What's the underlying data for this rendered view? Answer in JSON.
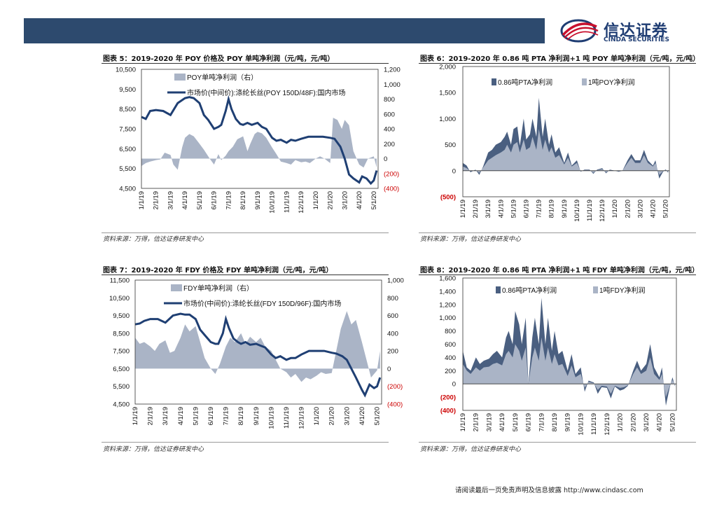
{
  "header": {
    "logo_cn": "信达证券",
    "logo_en": "CINDA SECURITIES"
  },
  "figures": [
    {
      "title": "图表 5：2019-2020 年 POY 价格及 POY 单吨净利润（元/吨，元/吨）",
      "source": "资料来源：万得，信达证券研发中心"
    },
    {
      "title": "图表 6：2019-2020 年 0.86 吨 PTA 净利润+1 吨 POY 单吨净利润（元/吨，元/吨）",
      "source": "资料来源：万得，信达证券研发中心"
    },
    {
      "title": "图表 7：2019-2020 年 FDY 价格及 FDY 单吨净利润（元/吨，元/吨）",
      "source": "资料来源：万得，信达证券研发中心"
    },
    {
      "title": "图表 8：2019-2020 年 0.86 吨 PTA 净利润+1 吨 FDY 单吨净利润（元/吨，元/吨）",
      "source": "资料来源：万得，信达证券研发中心"
    }
  ],
  "footer": {
    "text": "请阅读最后一页免责声明及信息披露 http://www.cindasc.com"
  },
  "colors": {
    "dark": "#1f3f73",
    "light": "#aab4c6",
    "band": "#2d4a6e",
    "red": "#cc0000"
  },
  "chart_data": [
    {
      "type": "area+line",
      "xticks": [
        "1/1/19",
        "2/1/19",
        "3/1/19",
        "4/1/19",
        "5/1/19",
        "6/1/19",
        "7/1/19",
        "8/1/19",
        "9/1/19",
        "10/1/19",
        "11/1/19",
        "12/1/19",
        "1/1/20",
        "2/1/20",
        "3/1/20",
        "4/1/20",
        "5/1/20"
      ],
      "ylim_left": [
        4500,
        10500
      ],
      "yticks_left": [
        "10,500",
        "9,500",
        "8,500",
        "7,500",
        "6,500",
        "5,500",
        "4,500"
      ],
      "ylim_right": [
        -400,
        1200
      ],
      "yticks_right": [
        "1,200",
        "1,000",
        "800",
        "600",
        "400",
        "200",
        "0",
        "(200)",
        "(400)"
      ],
      "series": [
        {
          "name": "POY单吨净利润（右）",
          "kind": "area",
          "axis": "right",
          "color": "#aab4c6",
          "x": [
            0,
            0.3,
            0.6,
            1,
            1.3,
            1.6,
            2,
            2.2,
            2.5,
            2.8,
            3,
            3.3,
            3.6,
            4,
            4.3,
            4.7,
            5,
            5.3,
            5.5,
            5.8,
            6,
            6.3,
            6.6,
            7,
            7.3,
            7.5,
            7.8,
            8,
            8.3,
            8.6,
            9,
            9.3,
            9.6,
            10,
            10.3,
            10.6,
            11,
            11.3,
            11.6,
            12,
            12.3,
            12.6,
            13,
            13.2,
            13.5,
            13.8,
            14,
            14.3,
            14.6,
            15,
            15.3,
            15.6,
            16,
            16.2
          ],
          "values": [
            -100,
            -60,
            -40,
            -20,
            -10,
            80,
            50,
            -80,
            -150,
            150,
            280,
            330,
            300,
            200,
            120,
            0,
            -80,
            60,
            -20,
            40,
            100,
            160,
            260,
            300,
            100,
            200,
            330,
            360,
            340,
            280,
            150,
            60,
            -40,
            -60,
            -80,
            -20,
            -50,
            -40,
            -60,
            0,
            30,
            0,
            -60,
            550,
            520,
            400,
            520,
            450,
            100,
            -80,
            -120,
            0,
            30,
            -120
          ]
        },
        {
          "name": "市场价(中间价):涤纶长丝(POY 150D/48F):国内市场",
          "kind": "line",
          "axis": "left",
          "color": "#1f3f73",
          "x": [
            0,
            0.3,
            0.6,
            1,
            1.5,
            2,
            2.5,
            3,
            3.3,
            3.6,
            4,
            4.3,
            4.6,
            5,
            5.3,
            5.5,
            5.8,
            6,
            6.2,
            6.5,
            6.8,
            7,
            7.3,
            7.6,
            8,
            8.3,
            8.6,
            9,
            9.3,
            9.6,
            10,
            10.3,
            10.6,
            11,
            11.5,
            12,
            12.5,
            13,
            13.3,
            13.7,
            14,
            14.3,
            14.6,
            15,
            15.2,
            15.5,
            15.8,
            16,
            16.2
          ],
          "values": [
            8100,
            8000,
            8400,
            8450,
            8400,
            8200,
            8800,
            9050,
            9100,
            9050,
            8800,
            8200,
            7950,
            7500,
            7600,
            7700,
            8400,
            9000,
            8500,
            8000,
            7750,
            7700,
            7800,
            7700,
            7800,
            7600,
            7500,
            7050,
            6900,
            6950,
            6800,
            6950,
            6900,
            7000,
            7100,
            7100,
            7100,
            7050,
            7000,
            6600,
            6000,
            5200,
            5000,
            4800,
            5100,
            5000,
            4750,
            4900,
            5400
          ]
        }
      ],
      "legend": [
        "POY单吨净利润（右）",
        "市场价(中间价):涤纶长丝(POY 150D/48F):国内市场"
      ]
    },
    {
      "type": "area",
      "xticks": [
        "1/1/19",
        "2/1/19",
        "3/1/19",
        "4/1/19",
        "5/1/19",
        "6/1/19",
        "7/1/19",
        "8/1/19",
        "9/1/19",
        "10/1/19",
        "11/1/19",
        "12/1/19",
        "1/1/20",
        "2/1/20",
        "3/1/20",
        "4/1/20",
        "5/1/20"
      ],
      "ylim": [
        -500,
        2000
      ],
      "yticks": [
        "2,000",
        "1,500",
        "1,000",
        "500",
        "0",
        "(500)"
      ],
      "series": [
        {
          "name": "0.86吨PTA净利润",
          "kind": "area",
          "color": "#4a5f80",
          "x": [
            0,
            0.3,
            0.6,
            1,
            1.3,
            1.6,
            2,
            2.3,
            2.6,
            3,
            3.3,
            3.5,
            3.8,
            4,
            4.3,
            4.5,
            4.8,
            5,
            5.3,
            5.5,
            5.8,
            6,
            6.3,
            6.5,
            6.8,
            7,
            7.3,
            7.6,
            8,
            8.3,
            8.6,
            9,
            9.3,
            9.6,
            10,
            10.3,
            10.6,
            11,
            11.3,
            11.6,
            12,
            12.3,
            12.6,
            13,
            13.3,
            13.6,
            14,
            14.3,
            14.6,
            15,
            15.2,
            15.5,
            15.8,
            16,
            16.2
          ],
          "values": [
            150,
            100,
            -30,
            20,
            -80,
            80,
            350,
            400,
            500,
            550,
            650,
            750,
            500,
            800,
            850,
            480,
            1000,
            600,
            700,
            1000,
            650,
            1400,
            650,
            1000,
            500,
            700,
            350,
            450,
            150,
            350,
            100,
            200,
            -20,
            20,
            20,
            -60,
            20,
            50,
            -50,
            20,
            0,
            -20,
            0,
            200,
            320,
            200,
            200,
            400,
            200,
            100,
            200,
            -150,
            -20,
            30,
            -40
          ]
        },
        {
          "name": "1吨POY净利润",
          "kind": "area",
          "color": "#aab4c6",
          "x": [
            0,
            0.3,
            0.6,
            1,
            1.3,
            1.6,
            2,
            2.3,
            2.6,
            3,
            3.3,
            3.5,
            3.8,
            4,
            4.3,
            4.5,
            4.8,
            5,
            5.3,
            5.5,
            5.8,
            6,
            6.3,
            6.5,
            6.8,
            7,
            7.3,
            7.6,
            8,
            8.3,
            8.6,
            9,
            9.3,
            9.6,
            10,
            10.3,
            10.6,
            11,
            11.3,
            11.6,
            12,
            12.3,
            12.6,
            13,
            13.3,
            13.6,
            14,
            14.3,
            14.6,
            15,
            15.2,
            15.5,
            15.8,
            16,
            16.2
          ],
          "values": [
            80,
            50,
            -10,
            10,
            -40,
            60,
            200,
            250,
            300,
            350,
            400,
            500,
            350,
            500,
            550,
            350,
            600,
            400,
            450,
            650,
            400,
            800,
            400,
            600,
            350,
            450,
            250,
            300,
            120,
            250,
            80,
            150,
            -10,
            10,
            10,
            -40,
            10,
            30,
            -30,
            10,
            0,
            -10,
            0,
            150,
            250,
            150,
            150,
            300,
            150,
            80,
            150,
            -80,
            -10,
            20,
            -20
          ]
        }
      ],
      "legend": [
        "0.86吨PTA净利润",
        "1吨POY净利润"
      ]
    },
    {
      "type": "area+line",
      "xticks": [
        "1/1/19",
        "2/1/19",
        "3/1/19",
        "4/1/19",
        "5/1/19",
        "6/1/19",
        "7/1/19",
        "8/1/19",
        "9/1/19",
        "10/1/19",
        "11/1/19",
        "12/1/19",
        "1/1/20",
        "2/1/20",
        "3/1/20",
        "4/1/20",
        "5/1/20"
      ],
      "ylim_left": [
        4500,
        11500
      ],
      "yticks_left": [
        "11,500",
        "10,500",
        "9,500",
        "8,500",
        "7,500",
        "6,500",
        "5,500",
        "4,500"
      ],
      "ylim_right": [
        -400,
        1000
      ],
      "yticks_right": [
        "1,000",
        "800",
        "600",
        "400",
        "200",
        "0",
        "(200)",
        "(400)"
      ],
      "series": [
        {
          "name": "FDY单吨净利润（右）",
          "kind": "area",
          "axis": "right",
          "color": "#aab4c6",
          "x": [
            0,
            0.3,
            0.6,
            1,
            1.3,
            1.6,
            2,
            2.3,
            2.6,
            3,
            3.3,
            3.6,
            4,
            4.3,
            4.6,
            5,
            5.3,
            5.6,
            6,
            6.3,
            6.6,
            7,
            7.3,
            7.6,
            8,
            8.3,
            8.6,
            9,
            9.3,
            9.6,
            10,
            10.3,
            10.6,
            11,
            11.3,
            11.6,
            12,
            12.3,
            12.6,
            13,
            13.3,
            13.6,
            14,
            14.3,
            14.6,
            15,
            15.3,
            15.6,
            16,
            16.2
          ],
          "values": [
            350,
            280,
            300,
            250,
            200,
            280,
            320,
            180,
            200,
            350,
            500,
            420,
            480,
            300,
            120,
            0,
            -60,
            50,
            250,
            350,
            300,
            400,
            280,
            360,
            300,
            350,
            250,
            200,
            100,
            0,
            -40,
            -100,
            -60,
            -150,
            -100,
            -120,
            -80,
            -40,
            -60,
            -50,
            200,
            450,
            650,
            500,
            550,
            300,
            100,
            -100,
            -20,
            200
          ]
        },
        {
          "name": "市场价(中间价):涤纶长丝(FDY 150D/96F):国内市场",
          "kind": "line",
          "axis": "left",
          "color": "#1f3f73",
          "x": [
            0,
            0.3,
            0.6,
            1,
            1.5,
            2,
            2.5,
            3,
            3.3,
            3.6,
            4,
            4.3,
            4.6,
            5,
            5.3,
            5.5,
            5.8,
            6,
            6.2,
            6.5,
            6.8,
            7,
            7.3,
            7.6,
            8,
            8.3,
            8.6,
            9,
            9.3,
            9.6,
            10,
            10.3,
            10.6,
            11,
            11.5,
            12,
            12.5,
            13,
            13.3,
            13.7,
            14,
            14.3,
            14.6,
            15,
            15.2,
            15.5,
            15.8,
            16,
            16.2
          ],
          "values": [
            9000,
            9050,
            9200,
            9300,
            9300,
            9100,
            9500,
            9600,
            9550,
            9550,
            9300,
            8700,
            8400,
            8000,
            7900,
            7900,
            8500,
            9300,
            8800,
            8200,
            8000,
            7900,
            8000,
            7850,
            7900,
            7800,
            7700,
            7300,
            7100,
            7200,
            7000,
            7100,
            7100,
            7300,
            7500,
            7500,
            7500,
            7400,
            7350,
            7200,
            7000,
            6500,
            6000,
            5300,
            5000,
            5600,
            5400,
            5500,
            6000
          ]
        }
      ],
      "legend": [
        "FDY单吨净利润（右）",
        "市场价(中间价):涤纶长丝(FDY 150D/96F):国内市场"
      ]
    },
    {
      "type": "area",
      "xticks": [
        "1/1/19",
        "2/1/19",
        "3/1/19",
        "4/1/19",
        "5/1/19",
        "6/1/19",
        "7/1/19",
        "8/1/19",
        "9/1/19",
        "10/1/19",
        "11/1/19",
        "12/1/19",
        "1/1/20",
        "2/1/20",
        "3/1/20",
        "4/1/20",
        "5/1/20"
      ],
      "ylim": [
        -400,
        1600
      ],
      "yticks": [
        "1,600",
        "1,400",
        "1,200",
        "1,000",
        "800",
        "600",
        "400",
        "200",
        "0",
        "(200)",
        "(400)"
      ],
      "series": [
        {
          "name": "0.86吨PTA净利润",
          "kind": "area",
          "color": "#4a5f80",
          "x": [
            0,
            0.3,
            0.6,
            1,
            1.3,
            1.6,
            2,
            2.3,
            2.6,
            3,
            3.3,
            3.5,
            3.8,
            4,
            4.3,
            4.5,
            4.8,
            5,
            5.3,
            5.5,
            5.8,
            6,
            6.3,
            6.5,
            6.8,
            7,
            7.3,
            7.6,
            8,
            8.3,
            8.6,
            9,
            9.3,
            9.6,
            10,
            10.3,
            10.6,
            11,
            11.3,
            11.6,
            12,
            12.3,
            12.6,
            13,
            13.3,
            13.6,
            14,
            14.3,
            14.6,
            15,
            15.2,
            15.5,
            15.8,
            16,
            16.2
          ],
          "values": [
            500,
            250,
            200,
            400,
            300,
            350,
            380,
            450,
            500,
            400,
            700,
            800,
            600,
            1100,
            900,
            600,
            1000,
            0,
            700,
            1000,
            600,
            1300,
            600,
            1000,
            500,
            800,
            450,
            500,
            200,
            450,
            150,
            250,
            -120,
            50,
            20,
            -150,
            -50,
            -60,
            -220,
            -40,
            -100,
            -80,
            -30,
            200,
            350,
            200,
            300,
            600,
            250,
            100,
            250,
            -330,
            -50,
            100,
            -40
          ]
        },
        {
          "name": "1吨FDY净利润",
          "kind": "area",
          "color": "#aab4c6",
          "x": [
            0,
            0.3,
            0.6,
            1,
            1.3,
            1.6,
            2,
            2.3,
            2.6,
            3,
            3.3,
            3.5,
            3.8,
            4,
            4.3,
            4.5,
            4.8,
            5,
            5.3,
            5.5,
            5.8,
            6,
            6.3,
            6.5,
            6.8,
            7,
            7.3,
            7.6,
            8,
            8.3,
            8.6,
            9,
            9.3,
            9.6,
            10,
            10.3,
            10.6,
            11,
            11.3,
            11.6,
            12,
            12.3,
            12.6,
            13,
            13.3,
            13.6,
            14,
            14.3,
            14.6,
            15,
            15.2,
            15.5,
            15.8,
            16,
            16.2
          ],
          "values": [
            300,
            200,
            150,
            250,
            200,
            250,
            260,
            300,
            320,
            280,
            450,
            500,
            400,
            600,
            500,
            350,
            550,
            0,
            400,
            550,
            350,
            700,
            350,
            550,
            300,
            450,
            280,
            300,
            120,
            280,
            100,
            150,
            -60,
            30,
            10,
            -90,
            -30,
            -40,
            -150,
            -30,
            -60,
            -50,
            -20,
            150,
            250,
            150,
            200,
            400,
            150,
            60,
            150,
            -200,
            -30,
            60,
            -20
          ]
        }
      ],
      "legend": [
        "0.86吨PTA净利润",
        "1吨FDY净利润"
      ]
    }
  ]
}
